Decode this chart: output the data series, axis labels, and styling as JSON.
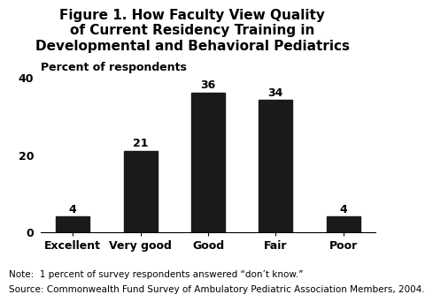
{
  "title": "Figure 1. How Faculty View Quality\nof Current Residency Training in\nDevelopmental and Behavioral Pediatrics",
  "ylabel": "Percent of respondents",
  "categories": [
    "Excellent",
    "Very good",
    "Good",
    "Fair",
    "Poor"
  ],
  "values": [
    4,
    21,
    36,
    34,
    4
  ],
  "bar_color": "#1a1a1a",
  "ylim": [
    0,
    40
  ],
  "yticks": [
    0,
    20,
    40
  ],
  "note_line1": "Note:  1 percent of survey respondents answered “don’t know.”",
  "note_line2": "Source: Commonwealth Fund Survey of Ambulatory Pediatric Association Members, 2004.",
  "background_color": "#ffffff",
  "title_fontsize": 11,
  "ylabel_fontsize": 9,
  "tick_fontsize": 9,
  "value_fontsize": 9,
  "note_fontsize": 7.5
}
